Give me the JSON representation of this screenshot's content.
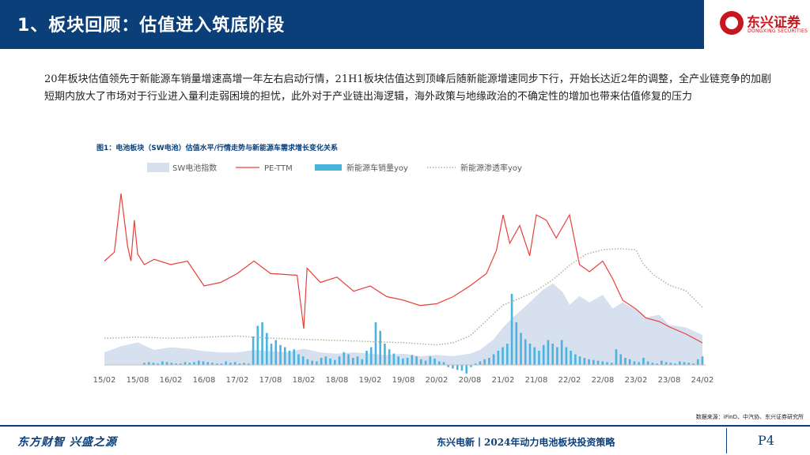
{
  "header": {
    "title": "1、板块回顾：估值进入筑底阶段"
  },
  "logo": {
    "name": "东兴证券",
    "sub": "DONGXING SECURITIES"
  },
  "paragraph": "20年板块估值领先于新能源车销量增速高增一年左右启动行情，21H1板块估值达到顶峰后随新能源增速同步下行，开始长达近2年的调整，全产业链竞争的加剧短期内放大了市场对于行业进入量利走弱困境的担忧，此外对于产业链出海逻辑，海外政策与地缘政治的不确定性的增加也带来估值修复的压力",
  "chart_title": "图1：电池板块（SW电池）估值水平/行情走势与新能源车需求增长变化关系",
  "source": "数据来源：iFinD、中汽协、东兴证券研究所",
  "footer": {
    "slogan": "东方财智  兴盛之源",
    "report": "东兴电新丨2024年动力电池板块投资策略",
    "page": "P4"
  },
  "colors": {
    "navy": "#0b3f7a",
    "area": "#d6e0ee",
    "line": "#e8403a",
    "bar": "#4bb3e0",
    "dotted": "#b7ae94"
  },
  "chart_data": {
    "type": "line",
    "legend": [
      "SW电池指数",
      "PE-TTM",
      "新能源车销量yoy",
      "新能源渗透率yoy"
    ],
    "legend_position": "top",
    "x_ticks": [
      "15/02",
      "15/08",
      "16/02",
      "16/08",
      "17/02",
      "17/08",
      "18/02",
      "18/08",
      "19/02",
      "19/08",
      "20/02",
      "20/08",
      "21/02",
      "21/08",
      "22/02",
      "22/08",
      "23/02",
      "23/08",
      "24/02"
    ],
    "grid": false,
    "series": [
      {
        "name": "SW电池指数",
        "kind": "area",
        "x": [
          0,
          0.5,
          1,
          1.5,
          2,
          2.5,
          3,
          3.5,
          4,
          4.5,
          5,
          5.5,
          6,
          6.5,
          7,
          7.5,
          8,
          8.5,
          9,
          9.5,
          10,
          10.5,
          11,
          11.3,
          11.7,
          12,
          12.3,
          12.6,
          13,
          13.2,
          13.5,
          13.8,
          14,
          14.3,
          14.6,
          15,
          15.3,
          15.6,
          16,
          16.3,
          16.7,
          17,
          17.5,
          18
        ],
        "values": [
          10,
          15,
          18,
          12,
          14,
          13,
          11,
          10,
          10,
          12,
          11,
          10,
          13,
          10,
          9,
          10,
          9,
          8,
          9,
          7,
          8,
          7,
          9,
          12,
          20,
          30,
          38,
          45,
          55,
          60,
          65,
          58,
          48,
          55,
          50,
          56,
          45,
          50,
          44,
          38,
          40,
          32,
          30,
          24
        ]
      },
      {
        "name": "PE-TTM",
        "kind": "line",
        "x": [
          0,
          0.3,
          0.5,
          0.7,
          0.8,
          0.9,
          1,
          1.2,
          1.5,
          2,
          2.5,
          3,
          3.5,
          4,
          4.5,
          5,
          5.8,
          6,
          6.1,
          6.5,
          7,
          7.5,
          8,
          8.5,
          9,
          9.5,
          10,
          10.5,
          11,
          11.5,
          11.8,
          12,
          12.2,
          12.5,
          12.8,
          13,
          13.3,
          13.6,
          14,
          14.3,
          14.6,
          15,
          15.3,
          15.6,
          16,
          16.3,
          16.7,
          17,
          17.5,
          18
        ],
        "values": [
          62,
          67,
          100,
          70,
          62,
          85,
          66,
          60,
          63,
          60,
          62,
          48,
          50,
          55,
          62,
          55,
          54,
          24,
          58,
          50,
          53,
          45,
          48,
          42,
          40,
          37,
          38,
          42,
          48,
          55,
          68,
          88,
          72,
          82,
          65,
          88,
          85,
          75,
          88,
          60,
          56,
          62,
          52,
          40,
          35,
          30,
          28,
          25,
          21,
          16
        ]
      },
      {
        "name": "新能源车销量yoy",
        "kind": "bar",
        "values": [
          3,
          4,
          3,
          2,
          5,
          4,
          3,
          2,
          2,
          4,
          3,
          4,
          6,
          5,
          4,
          3,
          2,
          2,
          5,
          3,
          4,
          2,
          3,
          2,
          40,
          55,
          60,
          45,
          30,
          35,
          28,
          25,
          20,
          22,
          15,
          12,
          8,
          6,
          5,
          10,
          12,
          9,
          7,
          12,
          18,
          15,
          10,
          12,
          8,
          20,
          25,
          60,
          48,
          30,
          22,
          16,
          12,
          9,
          10,
          14,
          12,
          8,
          6,
          12,
          9,
          5,
          4,
          -3,
          -5,
          -7,
          -8,
          -12,
          -3,
          2,
          5,
          8,
          10,
          15,
          20,
          25,
          30,
          100,
          60,
          45,
          36,
          30,
          25,
          20,
          28,
          35,
          30,
          25,
          35,
          25,
          20,
          15,
          12,
          10,
          8,
          7,
          6,
          5,
          4,
          3,
          22,
          15,
          10,
          8,
          5,
          4,
          10,
          5,
          3,
          2,
          6,
          4,
          3,
          2,
          5,
          4,
          3,
          2,
          8,
          12
        ]
      },
      {
        "name": "新能源渗透率yoy",
        "kind": "dotted",
        "x": [
          0,
          1,
          2,
          3,
          4,
          5,
          6,
          7,
          8,
          9,
          10,
          10.5,
          11,
          11.5,
          12,
          12.5,
          13,
          13.5,
          14,
          14.5,
          15,
          15.5,
          16,
          16.2,
          16.5,
          17,
          17.5,
          18
        ],
        "values": [
          12,
          13,
          12,
          13,
          14,
          12,
          11,
          10,
          9,
          8,
          6,
          8,
          14,
          28,
          42,
          48,
          55,
          65,
          78,
          88,
          92,
          93,
          92,
          80,
          70,
          60,
          55,
          40
        ]
      }
    ],
    "ylim_left": [
      -20,
      140
    ]
  }
}
